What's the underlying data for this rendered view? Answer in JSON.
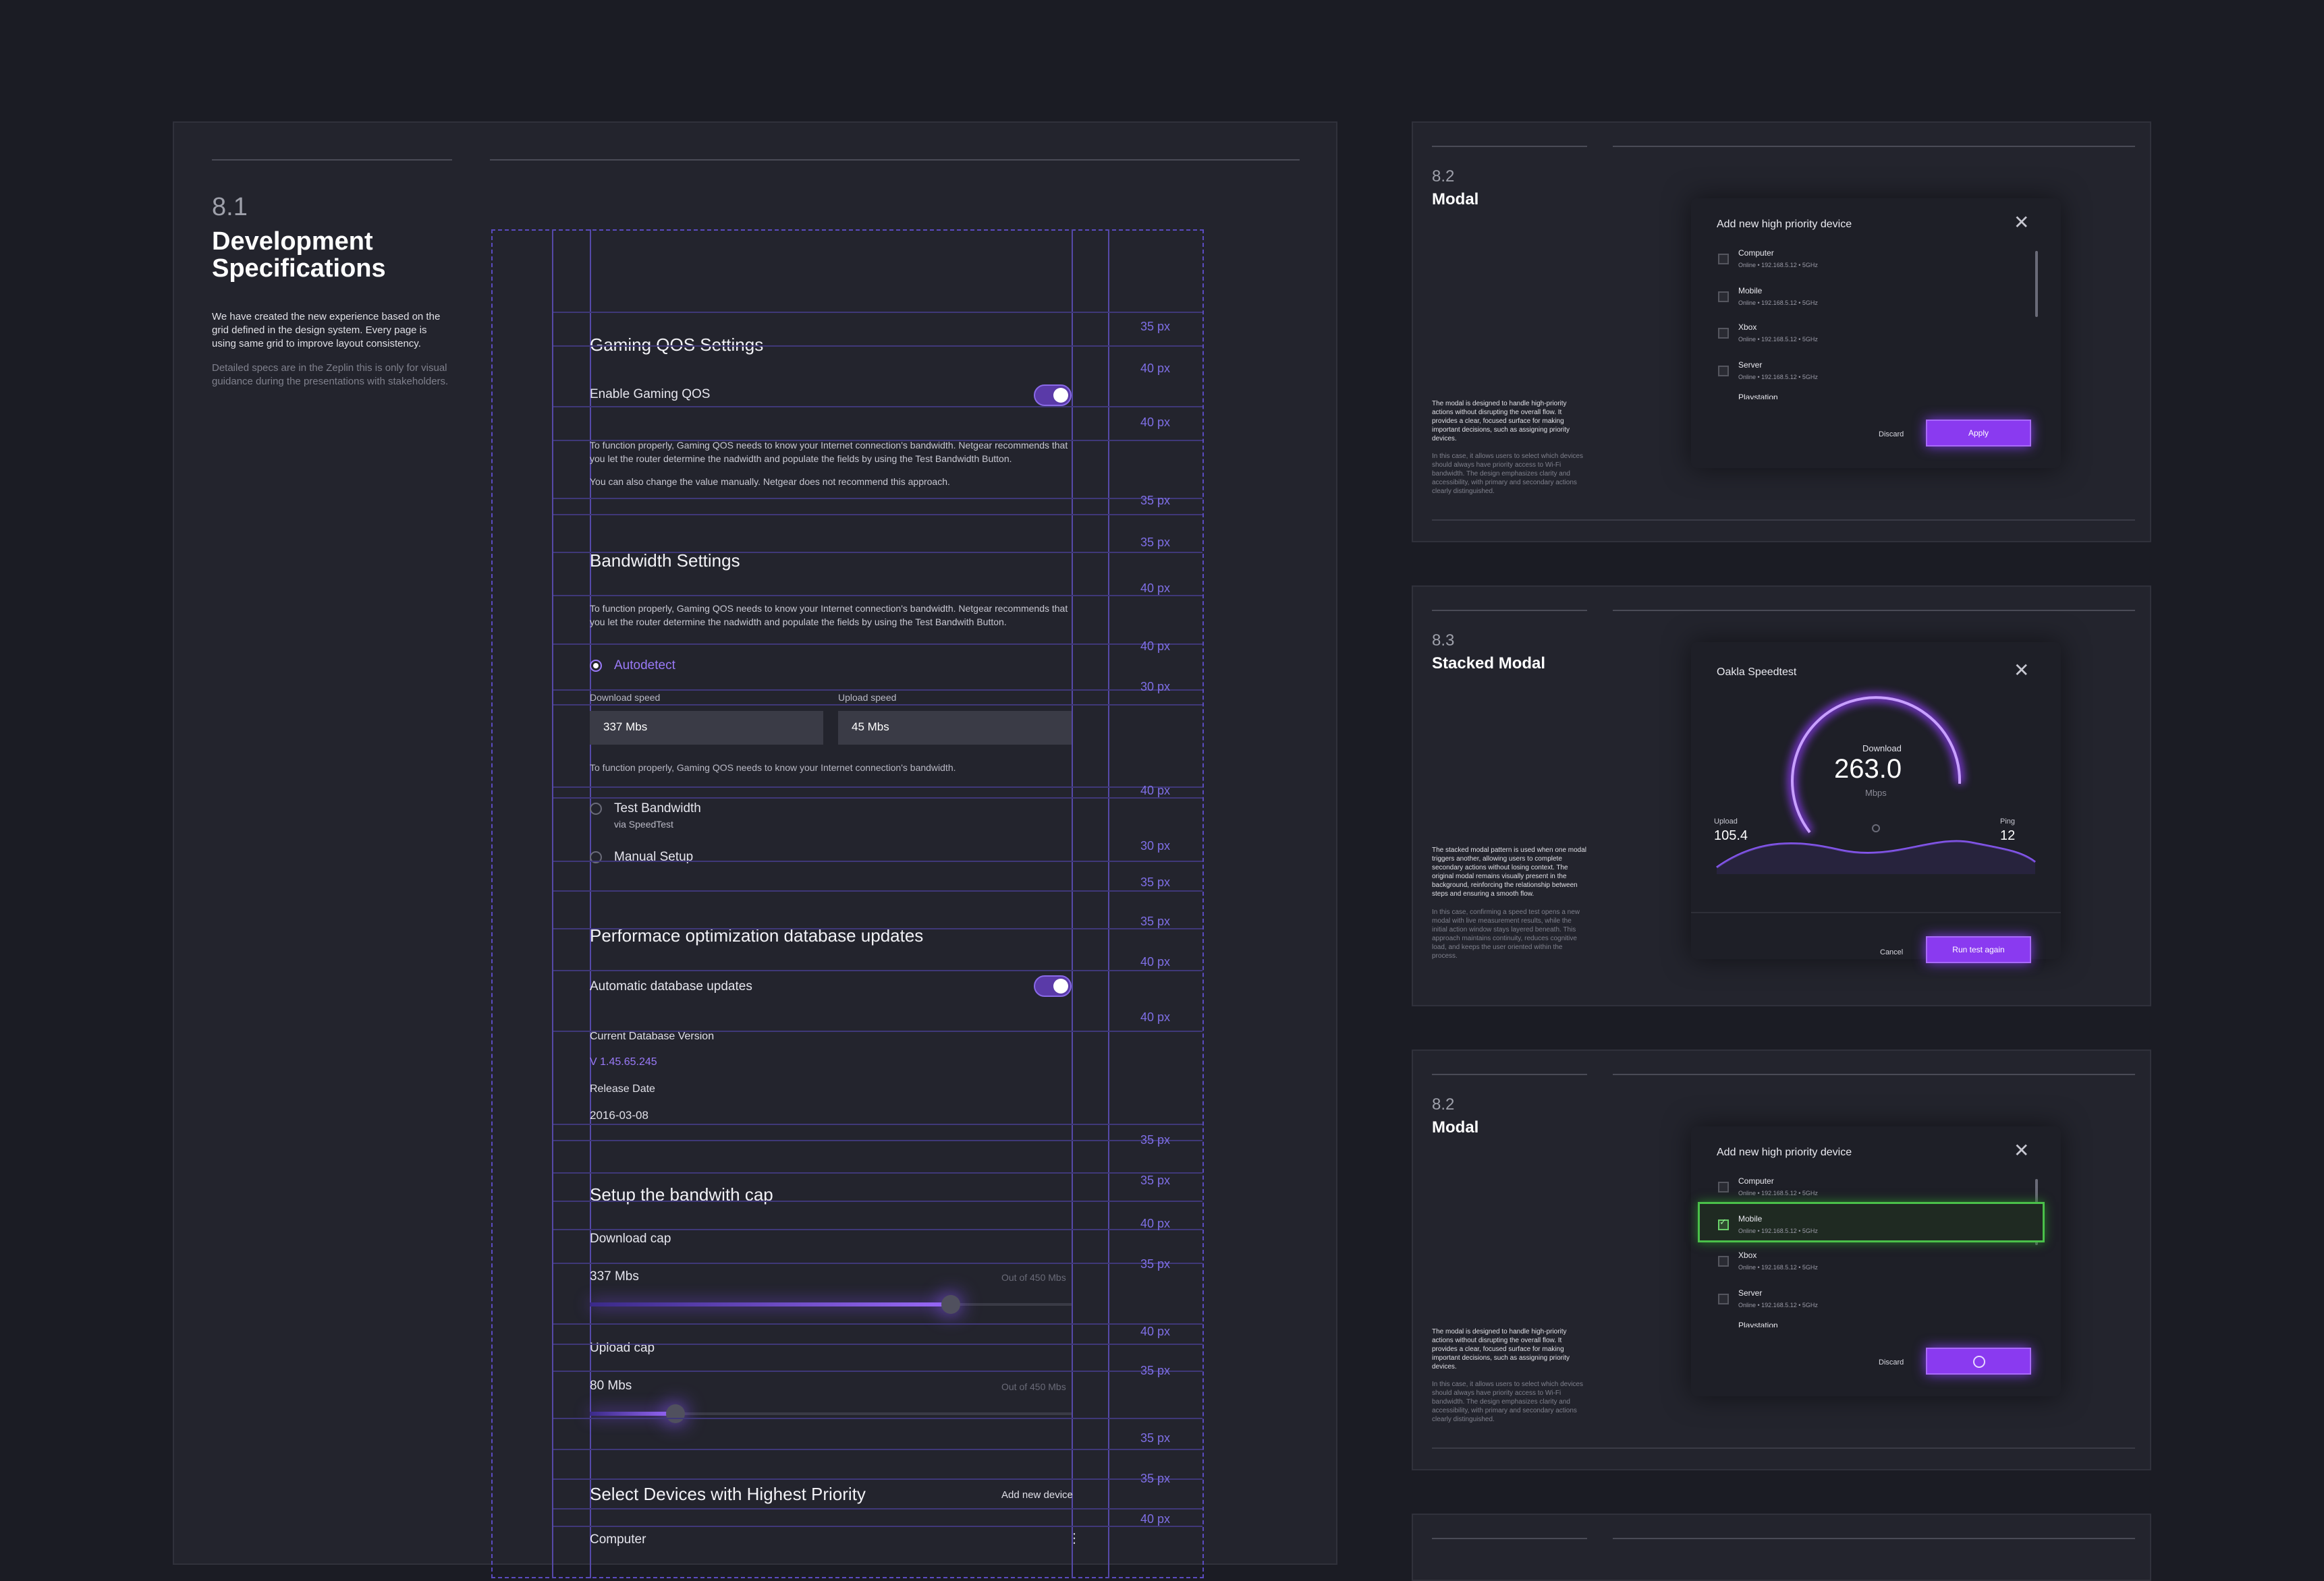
{
  "spec": {
    "number": "8.1",
    "title_line1": "Development",
    "title_line2": "Specifications",
    "intro": "We have created the new experience based on the grid defined in the design system. Every page is using same grid  to improve layout consistency.",
    "note": "Detailed specs are in the Zeplin this is only for visual guidance during the presentations with stakeholders.",
    "gaming": {
      "heading": "Gaming QOS Settings",
      "enable_label": "Enable Gaming QOS",
      "desc1": "To function properly, Gaming QOS needs to know your Internet connection's bandwidth. Netgear recommends that you  let the router determine the nadwidth and populate the fields by using  the Test Bandwidth Button.",
      "desc2": "You can also change the value manually. Netgear does not recommend this approach."
    },
    "bandwidth": {
      "heading": "Bandwidth Settings",
      "desc": "To function properly, Gaming QOS needs to know your Internet connection's bandwidth. Netgear recommends that you  let the router determine the nadwidth and populate the fields by using  the Test Bandwith Button.",
      "autodetect": "Autodetect",
      "download_label": "Download speed",
      "download_value": "337 Mbs",
      "upload_label": "Upload speed",
      "upload_value": "45 Mbs",
      "helper": "To function properly, Gaming QOS needs to know your Internet connection's bandwidth.",
      "test_label": "Test Bandwidth",
      "test_sub": "via SpeedTest",
      "manual_label": "Manual Setup"
    },
    "db": {
      "heading": "Performace optimization database updates",
      "auto_label": "Automatic database updates",
      "version_label": "Current Database Version",
      "version_value": "V 1.45.65.245",
      "release_label": "Release Date",
      "release_value": "2016-03-08"
    },
    "cap": {
      "heading": "Setup the bandwith cap",
      "download_label": "Download cap",
      "download_value": "337 Mbs",
      "download_max": "Out of 450 Mbs",
      "download_fraction": 0.749,
      "upload_label": "Upload cap",
      "upload_value": "80 Mbs",
      "upload_max": "Out of 450 Mbs",
      "upload_fraction": 0.178
    },
    "devices": {
      "heading": "Select Devices with Highest Priority",
      "add_label": "Add new device",
      "first_device": "Computer"
    },
    "spacing": [
      "35 px",
      "40 px",
      "40 px",
      "35 px",
      "35 px",
      "40 px",
      "40 px",
      "30 px",
      "40 px",
      "30 px",
      "35 px",
      "35 px",
      "40 px",
      "40 px",
      "35 px",
      "35 px",
      "40 px",
      "35 px",
      "40 px",
      "35 px",
      "35 px",
      "35 px",
      "40 px"
    ]
  },
  "modal1": {
    "number": "8.2",
    "title": "Modal",
    "para": "The modal is designed to handle high-priority actions without disrupting the overall flow. It provides a clear, focused surface for making important decisions, such as assigning priority devices.",
    "para_dim": "In this case, it allows users to select which devices should always have priority access to Wi-Fi bandwidth. The design emphasizes clarity and accessibility, with primary and secondary actions clearly distinguished.",
    "dialog_title": "Add new high priority device",
    "devices": [
      {
        "name": "Computer",
        "sub": "Online • 192.168.5.12 • 5GHz"
      },
      {
        "name": "Mobile",
        "sub": "Online • 192.168.5.12 • 5GHz"
      },
      {
        "name": "Xbox",
        "sub": "Online • 192.168.5.12 • 5GHz"
      },
      {
        "name": "Server",
        "sub": "Online • 192.168.5.12 • 5GHz"
      }
    ],
    "partial": "Playstation",
    "discard": "Discard",
    "apply": "Apply"
  },
  "modal2": {
    "number": "8.3",
    "title": "Stacked Modal",
    "para": "The stacked modal pattern is used when one modal triggers another, allowing users to complete secondary actions without losing context. The original modal remains visually present in the background, reinforcing the relationship between steps and ensuring a smooth flow.",
    "para_dim": "In this case, confirming a speed test opens a new modal with live measurement results, while the initial action window stays layered beneath. This approach maintains continuity, reduces cognitive load, and keeps the user oriented within the process.",
    "dialog_title": "Oakla Speedtest",
    "download_label": "Download",
    "download_value": "263.0",
    "unit": "Mbps",
    "upload_label": "Upload",
    "upload_value": "105.4",
    "ping_label": "Ping",
    "ping_value": "12",
    "cancel": "Cancel",
    "run": "Run test again"
  },
  "modal3": {
    "number": "8.2",
    "title": "Modal",
    "para": "The modal is designed to handle high-priority actions without disrupting the overall flow. It provides a clear, focused surface for making important decisions, such as assigning priority devices.",
    "para_dim": "In this case, it allows users to select which devices should always have priority access to Wi-Fi bandwidth. The design emphasizes clarity and accessibility, with primary and secondary actions clearly distinguished.",
    "dialog_title": "Add new high priority device",
    "devices": [
      {
        "name": "Computer",
        "sub": "Online • 192.168.5.12 • 5GHz"
      },
      {
        "name": "Mobile",
        "sub": "Online • 192.168.5.12 • 5GHz"
      },
      {
        "name": "Xbox",
        "sub": "Online • 192.168.5.12 • 5GHz"
      },
      {
        "name": "Server",
        "sub": "Online • 192.168.5.12 • 5GHz"
      }
    ],
    "partial": "Playstation",
    "discard": "Discard"
  },
  "colors": {
    "accent": "#8a3af0",
    "bg": "#1b1c24",
    "panel": "#23242d",
    "grid": "#5549a8",
    "selected": "#4ac04a"
  }
}
